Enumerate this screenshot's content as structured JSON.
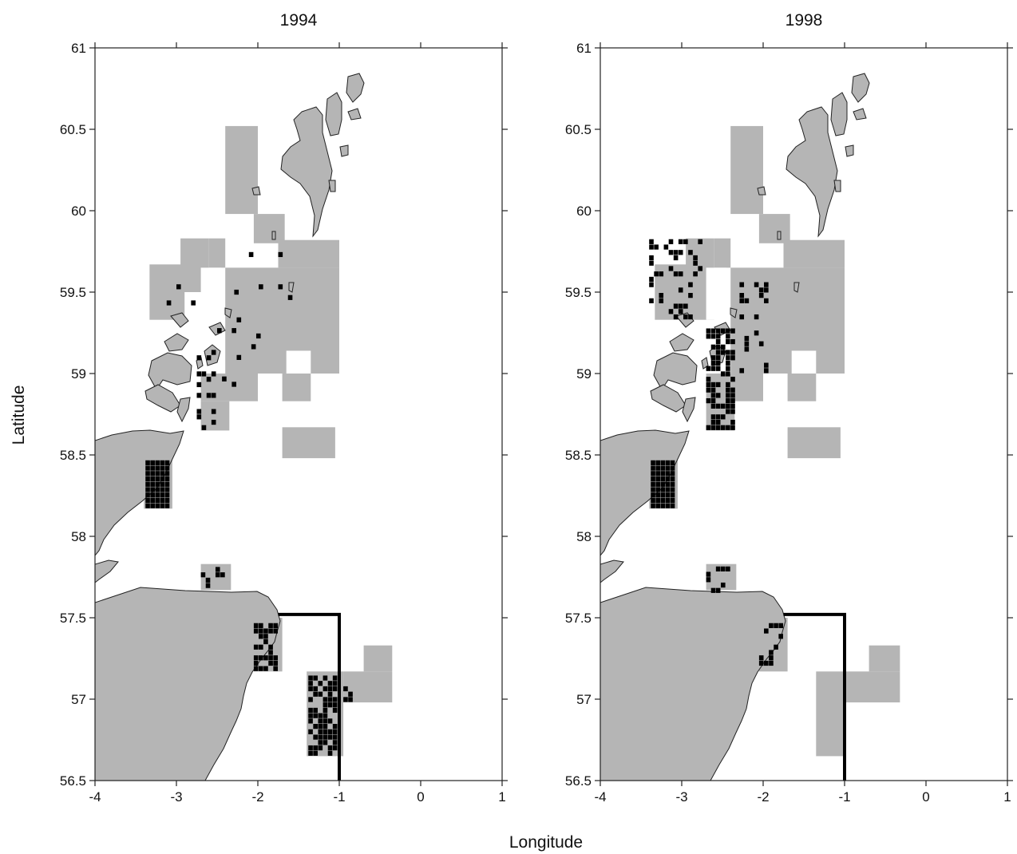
{
  "figure": {
    "xlabel": "Longitude",
    "ylabel": "Latitude"
  },
  "colors": {
    "land": "#b5b5b5",
    "survey_cells": "#b5b5b5",
    "present_cells": "#000000",
    "boundary": "#000000"
  },
  "chart_data": [
    {
      "type": "map",
      "title": "1994",
      "xlim": [
        -4,
        1
      ],
      "ylim": [
        56.5,
        61
      ],
      "x_ticks": [
        -4,
        -3,
        -2,
        -1,
        0,
        1
      ],
      "x_tick_labels": [
        "-4",
        "-3",
        "-2",
        "-1",
        "0",
        "1"
      ],
      "y_ticks": [
        56.5,
        57,
        57.5,
        58,
        58.5,
        59,
        59.5,
        60,
        60.5,
        61
      ],
      "y_tick_labels": [
        "56.5",
        "57",
        "57.5",
        "58",
        "58.5",
        "59",
        "59.5",
        "60",
        "60.5",
        "61"
      ],
      "survey_areas": [
        {
          "lon": [
            -2.4,
            -2.0
          ],
          "lat": [
            59.98,
            60.52
          ]
        },
        {
          "lon": [
            -2.05,
            -1.67
          ],
          "lat": [
            59.8,
            59.98
          ]
        },
        {
          "lon": [
            -3.33,
            -2.9
          ],
          "lat": [
            59.33,
            59.67
          ]
        },
        {
          "lon": [
            -2.95,
            -2.6
          ],
          "lat": [
            59.5,
            59.83
          ]
        },
        {
          "lon": [
            -2.6,
            -2.4
          ],
          "lat": [
            59.65,
            59.83
          ]
        },
        {
          "lon": [
            -2.4,
            -1.0
          ],
          "lat": [
            59.0,
            59.65
          ]
        },
        {
          "lon": [
            -1.75,
            -1.0
          ],
          "lat": [
            59.65,
            59.82
          ]
        },
        {
          "lon": [
            -2.7,
            -2.0
          ],
          "lat": [
            58.83,
            59.0
          ]
        },
        {
          "lon": [
            -1.7,
            -1.35
          ],
          "lat": [
            58.83,
            59.0
          ]
        },
        {
          "lon": [
            -2.7,
            -2.35
          ],
          "lat": [
            58.65,
            58.83
          ]
        },
        {
          "lon": [
            -1.7,
            -1.05
          ],
          "lat": [
            58.48,
            58.67
          ]
        },
        {
          "lon": [
            -3.4,
            -3.05
          ],
          "lat": [
            58.17,
            58.5
          ]
        },
        {
          "lon": [
            -2.7,
            -2.33
          ],
          "lat": [
            57.67,
            57.83
          ]
        },
        {
          "lon": [
            -2.05,
            -1.7
          ],
          "lat": [
            57.17,
            57.5
          ]
        },
        {
          "lon": [
            -1.4,
            -0.95
          ],
          "lat": [
            56.65,
            57.17
          ]
        },
        {
          "lon": [
            -0.95,
            -0.35
          ],
          "lat": [
            56.98,
            57.17
          ]
        },
        {
          "lon": [
            -0.7,
            -0.35
          ],
          "lat": [
            57.17,
            57.33
          ]
        }
      ],
      "survey_holes": [
        {
          "lon": [
            -2.7,
            -2.45
          ],
          "lat": [
            59.33,
            59.65
          ]
        },
        {
          "lon": [
            -1.65,
            -1.35
          ],
          "lat": [
            59.0,
            59.14
          ]
        }
      ],
      "presence_cells": [
        {
          "lon": [
            -3.38,
            -3.02
          ],
          "lat": [
            58.17,
            58.5
          ],
          "count": 55
        },
        {
          "lon": [
            -2.75,
            -2.5
          ],
          "lat": [
            58.65,
            59.15
          ],
          "count": 16
        },
        {
          "lon": [
            -2.5,
            -1.9
          ],
          "lat": [
            58.85,
            59.35
          ],
          "count": 8
        },
        {
          "lon": [
            -2.35,
            -1.55
          ],
          "lat": [
            59.35,
            59.8
          ],
          "count": 6
        },
        {
          "lon": [
            -3.3,
            -2.75
          ],
          "lat": [
            59.35,
            59.82
          ],
          "count": 3
        },
        {
          "lon": [
            -2.7,
            -2.35
          ],
          "lat": [
            57.68,
            57.82
          ],
          "count": 6
        },
        {
          "lon": [
            -2.05,
            -1.72
          ],
          "lat": [
            57.17,
            57.5
          ],
          "count": 28
        },
        {
          "lon": [
            -1.38,
            -0.97
          ],
          "lat": [
            56.65,
            57.17
          ],
          "count": 60
        },
        {
          "lon": [
            -0.95,
            -0.65
          ],
          "lat": [
            56.98,
            57.1
          ],
          "count": 4
        }
      ],
      "boundary_line": {
        "lon": [
          -1.75,
          -1.0,
          -1.0
        ],
        "lat": [
          57.52,
          57.52,
          56.5
        ]
      }
    },
    {
      "type": "map",
      "title": "1998",
      "xlim": [
        -4,
        1
      ],
      "ylim": [
        56.5,
        61
      ],
      "x_ticks": [
        -4,
        -3,
        -2,
        -1,
        0,
        1
      ],
      "x_tick_labels": [
        "-4",
        "-3",
        "-2",
        "-1",
        "0",
        "1"
      ],
      "y_ticks": [
        56.5,
        57,
        57.5,
        58,
        58.5,
        59,
        59.5,
        60,
        60.5,
        61
      ],
      "y_tick_labels": [
        "56.5",
        "57",
        "57.5",
        "58",
        "58.5",
        "59",
        "59.5",
        "60",
        "60.5",
        "61"
      ],
      "survey_areas": [
        {
          "lon": [
            -2.4,
            -2.0
          ],
          "lat": [
            59.98,
            60.52
          ]
        },
        {
          "lon": [
            -2.05,
            -1.67
          ],
          "lat": [
            59.8,
            59.98
          ]
        },
        {
          "lon": [
            -3.33,
            -2.9
          ],
          "lat": [
            59.33,
            59.67
          ]
        },
        {
          "lon": [
            -2.95,
            -2.6
          ],
          "lat": [
            59.33,
            59.83
          ]
        },
        {
          "lon": [
            -2.6,
            -2.4
          ],
          "lat": [
            59.65,
            59.83
          ]
        },
        {
          "lon": [
            -2.4,
            -1.0
          ],
          "lat": [
            59.0,
            59.65
          ]
        },
        {
          "lon": [
            -1.75,
            -1.0
          ],
          "lat": [
            59.65,
            59.82
          ]
        },
        {
          "lon": [
            -2.7,
            -2.0
          ],
          "lat": [
            58.83,
            59.0
          ]
        },
        {
          "lon": [
            -1.7,
            -1.35
          ],
          "lat": [
            58.83,
            59.0
          ]
        },
        {
          "lon": [
            -2.7,
            -2.35
          ],
          "lat": [
            58.65,
            58.83
          ]
        },
        {
          "lon": [
            -1.7,
            -1.05
          ],
          "lat": [
            58.48,
            58.67
          ]
        },
        {
          "lon": [
            -3.4,
            -3.05
          ],
          "lat": [
            58.17,
            58.5
          ]
        },
        {
          "lon": [
            -2.7,
            -2.33
          ],
          "lat": [
            57.67,
            57.83
          ]
        },
        {
          "lon": [
            -2.05,
            -1.7
          ],
          "lat": [
            57.17,
            57.5
          ]
        },
        {
          "lon": [
            -1.35,
            -1.0
          ],
          "lat": [
            56.65,
            57.17
          ]
        },
        {
          "lon": [
            -1.0,
            -0.32
          ],
          "lat": [
            56.98,
            57.17
          ]
        },
        {
          "lon": [
            -0.7,
            -0.32
          ],
          "lat": [
            57.17,
            57.33
          ]
        }
      ],
      "survey_holes": [
        {
          "lon": [
            -2.7,
            -2.45
          ],
          "lat": [
            59.33,
            59.65
          ]
        },
        {
          "lon": [
            -1.65,
            -1.35
          ],
          "lat": [
            59.0,
            59.14
          ]
        }
      ],
      "presence_cells": [
        {
          "lon": [
            -3.38,
            -3.02
          ],
          "lat": [
            58.17,
            58.5
          ],
          "count": 60
        },
        {
          "lon": [
            -3.4,
            -2.7
          ],
          "lat": [
            59.33,
            59.83
          ],
          "count": 40
        },
        {
          "lon": [
            -2.7,
            -2.3
          ],
          "lat": [
            58.65,
            59.3
          ],
          "count": 70
        },
        {
          "lon": [
            -2.35,
            -1.9
          ],
          "lat": [
            59.0,
            59.6
          ],
          "count": 20
        },
        {
          "lon": [
            -2.7,
            -2.35
          ],
          "lat": [
            57.65,
            57.82
          ],
          "count": 8
        },
        {
          "lon": [
            -2.05,
            -1.72
          ],
          "lat": [
            57.17,
            57.5
          ],
          "count": 12
        }
      ],
      "boundary_line": {
        "lon": [
          -1.75,
          -1.0,
          -1.0
        ],
        "lat": [
          57.52,
          57.52,
          56.5
        ]
      }
    }
  ]
}
